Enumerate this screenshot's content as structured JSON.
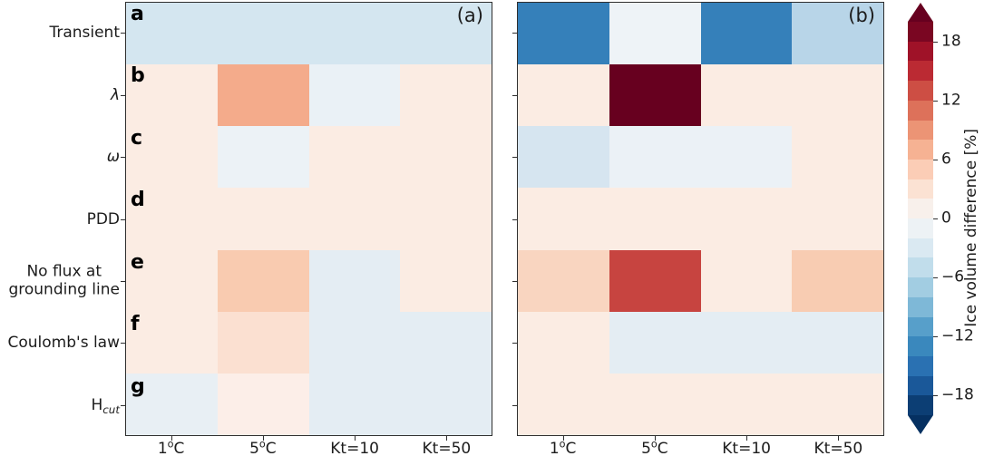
{
  "figure": {
    "rows": [
      {
        "letter": "a",
        "text": "Transient"
      },
      {
        "letter": "b",
        "text": "λ",
        "italic": true
      },
      {
        "letter": "c",
        "text": "ω",
        "italic": true
      },
      {
        "letter": "d",
        "text": "PDD"
      },
      {
        "letter": "e",
        "lines": [
          "No flux at",
          "grounding line"
        ]
      },
      {
        "letter": "f",
        "text": "Coulomb's law"
      },
      {
        "letter": "g",
        "text": "H",
        "sub": "cut"
      }
    ],
    "columns": [
      {
        "pre": "1",
        "sup": "o",
        "post": "C"
      },
      {
        "pre": "5",
        "sup": "o",
        "post": "C"
      },
      {
        "pre": "Kt=10",
        "sup": "",
        "post": ""
      },
      {
        "pre": "Kt=50",
        "sup": "",
        "post": ""
      }
    ],
    "panels": [
      {
        "tag": "(a)",
        "show_letters": true
      },
      {
        "tag": "(b)",
        "show_letters": false
      }
    ],
    "colorbar": {
      "label": "Ice volume difference [%]",
      "tick_labels": [
        "18",
        "12",
        "6",
        "0",
        "−6",
        "−12",
        "−18"
      ],
      "tick_values": [
        18,
        12,
        6,
        0,
        -6,
        -12,
        -18
      ],
      "range": [
        -20,
        20
      ],
      "segments_top_to_bottom": [
        "#7a0622",
        "#9f1228",
        "#bb2a33",
        "#cd4e44",
        "#dd715a",
        "#ec9475",
        "#f6b293",
        "#fbcdb6",
        "#fbe2d3",
        "#f8f0eb",
        "#edf2f5",
        "#dae9f2",
        "#c1ddeb",
        "#a2cde2",
        "#7eb8d7",
        "#579fca",
        "#3a88bd",
        "#2a71b2",
        "#1a5899",
        "#0c3e74"
      ],
      "over_color": "#67001f",
      "under_color": "#053061"
    }
  },
  "chart_data": [
    {
      "type": "heatmap",
      "panel": "(a)",
      "x_categories": [
        "1°C",
        "5°C",
        "Kt=10",
        "Kt=50"
      ],
      "y_categories": [
        "Transient",
        "λ",
        "ω",
        "PDD",
        "No flux at grounding line",
        "Coulomb's law",
        "Hcut"
      ],
      "row_letters": [
        "a",
        "b",
        "c",
        "d",
        "e",
        "f",
        "g"
      ],
      "values_percent": [
        [
          -4,
          -4,
          -4,
          -4
        ],
        [
          1,
          7,
          -1,
          1
        ],
        [
          1,
          -1,
          1,
          1
        ],
        [
          1,
          1,
          1,
          1
        ],
        [
          1,
          5,
          -2,
          1
        ],
        [
          1,
          3,
          -2,
          -2
        ],
        [
          -2,
          1,
          -2,
          -2
        ]
      ],
      "cell_colors": [
        [
          "#d4e6f0",
          "#d4e6f0",
          "#d4e6f0",
          "#d4e6f0"
        ],
        [
          "#fbece3",
          "#f4ab8b",
          "#eaf1f6",
          "#fbece3"
        ],
        [
          "#fbece3",
          "#ecf2f6",
          "#fbece3",
          "#fbece3"
        ],
        [
          "#fbece3",
          "#fbece3",
          "#fbece3",
          "#fbece3"
        ],
        [
          "#fbece3",
          "#f9cbb0",
          "#e4edf3",
          "#fbece3"
        ],
        [
          "#fbece3",
          "#fbe0d1",
          "#e4edf3",
          "#e4edf3"
        ],
        [
          "#e8eff4",
          "#fceee8",
          "#e4edf3",
          "#e4edf3"
        ]
      ],
      "colorbar_label": "Ice volume difference [%]",
      "color_range": [
        -20,
        20
      ]
    },
    {
      "type": "heatmap",
      "panel": "(b)",
      "x_categories": [
        "1°C",
        "5°C",
        "Kt=10",
        "Kt=50"
      ],
      "y_categories": [
        "Transient",
        "λ",
        "ω",
        "PDD",
        "No flux at grounding line",
        "Coulomb's law",
        "Hcut"
      ],
      "values_percent": [
        [
          -13,
          -1,
          -13,
          -6
        ],
        [
          1,
          19,
          1,
          1
        ],
        [
          -4,
          -1,
          -1,
          1
        ],
        [
          1,
          1,
          1,
          1
        ],
        [
          4,
          13,
          1,
          5
        ],
        [
          1,
          -2,
          -2,
          -2
        ],
        [
          1,
          1,
          1,
          1
        ]
      ],
      "cell_colors": [
        [
          "#3580ba",
          "#eef3f7",
          "#3580ba",
          "#b8d5e8"
        ],
        [
          "#fbece3",
          "#67001f",
          "#fbece3",
          "#fbece3"
        ],
        [
          "#d6e5f0",
          "#ebf1f6",
          "#ebf1f6",
          "#fbece3"
        ],
        [
          "#fbece3",
          "#fbece3",
          "#fbece3",
          "#fbece3"
        ],
        [
          "#f9d5c0",
          "#c74440",
          "#fbece3",
          "#f8ccb2"
        ],
        [
          "#fbece3",
          "#e4edf3",
          "#e4edf3",
          "#e4edf3"
        ],
        [
          "#fbece3",
          "#fbece3",
          "#fbece3",
          "#fbece3"
        ]
      ],
      "colorbar_label": "Ice volume difference [%]",
      "color_range": [
        -20,
        20
      ]
    }
  ]
}
